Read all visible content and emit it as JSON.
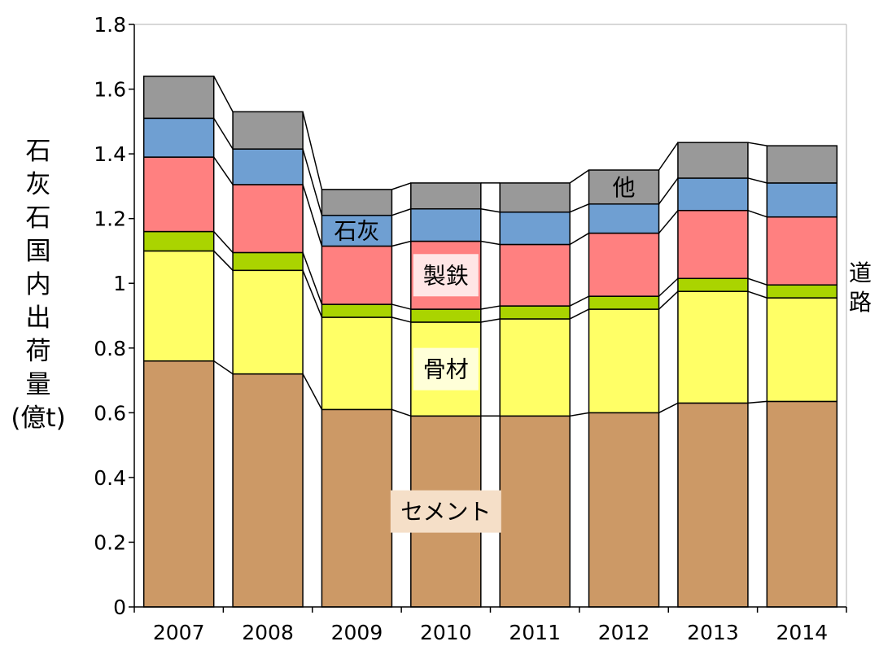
{
  "chart_data": {
    "type": "bar",
    "stacked": true,
    "ylabel": "石灰石国内出荷量(億t)",
    "ylim": [
      0,
      1.8
    ],
    "yticks": [
      0,
      0.2,
      0.4,
      0.6,
      0.8,
      1,
      1.2,
      1.4,
      1.6,
      1.8
    ],
    "ytick_labels": [
      "0",
      "0.2",
      "0.4",
      "0.6",
      "0.8",
      "1",
      "1.2",
      "1.4",
      "1.6",
      "1.8"
    ],
    "grid": false,
    "legend": "none",
    "categories": [
      "2007",
      "2008",
      "2009",
      "2010",
      "2011",
      "2012",
      "2013",
      "2014"
    ],
    "series": [
      {
        "name": "セメント",
        "color": "#cc9966",
        "values": [
          0.76,
          0.72,
          0.61,
          0.59,
          0.59,
          0.6,
          0.63,
          0.635
        ]
      },
      {
        "name": "骨材",
        "color": "#ffff66",
        "values": [
          0.34,
          0.32,
          0.285,
          0.29,
          0.3,
          0.32,
          0.345,
          0.32
        ]
      },
      {
        "name": "道路",
        "color": "#aad400",
        "values": [
          0.06,
          0.055,
          0.04,
          0.04,
          0.04,
          0.04,
          0.04,
          0.04
        ]
      },
      {
        "name": "製鉄",
        "color": "#ff8080",
        "values": [
          0.23,
          0.21,
          0.18,
          0.21,
          0.19,
          0.195,
          0.21,
          0.21
        ]
      },
      {
        "name": "石灰",
        "color": "#6f9fd2",
        "values": [
          0.12,
          0.11,
          0.095,
          0.1,
          0.1,
          0.09,
          0.1,
          0.105
        ]
      },
      {
        "name": "他",
        "color": "#999999",
        "values": [
          0.13,
          0.115,
          0.08,
          0.08,
          0.09,
          0.105,
          0.11,
          0.115
        ]
      }
    ],
    "annotations": [
      {
        "text": "セメント",
        "series": "セメント",
        "category": "2010",
        "boxed": true,
        "box_color": "#f5dfc8"
      },
      {
        "text": "骨材",
        "series": "骨材",
        "category": "2010",
        "boxed": true,
        "box_color": "#ffffd8"
      },
      {
        "text": "製鉄",
        "series": "製鉄",
        "category": "2010",
        "boxed": true,
        "box_color": "#ffe6e6"
      },
      {
        "text": "石灰",
        "series": "石灰",
        "category": "2009",
        "boxed": false
      },
      {
        "text": "他",
        "series": "他",
        "category": "2012",
        "boxed": false
      },
      {
        "text": "道路",
        "series": "道路",
        "position": "right",
        "boxed": false
      }
    ]
  }
}
